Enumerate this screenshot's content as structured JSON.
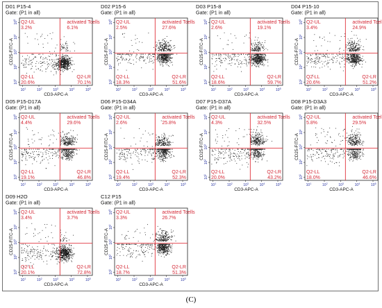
{
  "figure": {
    "caption": "(C)"
  },
  "colors": {
    "gate_line": "#e0303a",
    "quadrant_text": "#d42a37",
    "event_dot": "#1a1a1a",
    "axis": "#222222",
    "title_text": "#111111"
  },
  "chart_data": [
    {
      "type": "scatter",
      "title": "D01 P15-4",
      "subtitle": "Gate: (P1 in all)",
      "xlabel": "CD3-APC-A",
      "ylabel": "CD25-FITC-A",
      "x_ticks": [
        "10^1",
        "10^2",
        "10^3",
        "10^4",
        "10^5"
      ],
      "y_ticks": [
        "10^1",
        "10^2",
        "10^3",
        "10^4",
        "10^5"
      ],
      "quadrant_labels": {
        "ul": "Q2-UL",
        "ur": "activated Tcells",
        "ll": "Q2-LL",
        "lr": "Q2-LR"
      },
      "quadrant_percents": {
        "ul": "3.2%",
        "ur": "6.1%",
        "ll": "20.6%",
        "lr": "70.1%"
      },
      "clusters": [
        {
          "x": 3.55,
          "y": 2.3
        }
      ]
    },
    {
      "type": "scatter",
      "title": "D02 P15-6",
      "subtitle": "Gate: (P1 in all)",
      "xlabel": "CD3-APC-A",
      "ylabel": "CD25-FITC-A",
      "x_ticks": [
        "10^1",
        "10^2",
        "10^3",
        "10^4",
        "10^5"
      ],
      "y_ticks": [
        "10^1",
        "10^2",
        "10^3",
        "10^4",
        "10^5"
      ],
      "quadrant_labels": {
        "ul": "Q2-UL",
        "ur": "activated Tcells",
        "ll": "Q2-LL",
        "lr": "Q2-LR"
      },
      "quadrant_percents": {
        "ul": "2.5%",
        "ur": "27.6%",
        "ll": "18.3%",
        "lr": "51.6%"
      },
      "clusters": [
        {
          "x": 3.85,
          "y": 2.7
        }
      ]
    },
    {
      "type": "scatter",
      "title": "D03 P15-8",
      "subtitle": "Gate: (P1 in all)",
      "xlabel": "CD3-APC-A",
      "ylabel": "CD25-FITC-A",
      "x_ticks": [
        "10^1",
        "10^2",
        "10^3",
        "10^4",
        "10^5"
      ],
      "y_ticks": [
        "10^1",
        "10^2",
        "10^3",
        "10^4",
        "10^5"
      ],
      "quadrant_labels": {
        "ul": "Q2-UL",
        "ur": "activated Tcells",
        "ll": "Q2-LL",
        "lr": "Q2-LR"
      },
      "quadrant_percents": {
        "ul": "2.6%",
        "ur": "19.1%",
        "ll": "18.6%",
        "lr": "59.7%"
      },
      "clusters": [
        {
          "x": 3.75,
          "y": 2.6
        }
      ]
    },
    {
      "type": "scatter",
      "title": "D04 P15-10",
      "subtitle": "Gate: (P1 in all)",
      "xlabel": "CD3-APC-A",
      "ylabel": "CD25-FITC-A",
      "x_ticks": [
        "10^1",
        "10^2",
        "10^3",
        "10^4",
        "10^5"
      ],
      "y_ticks": [
        "10^1",
        "10^2",
        "10^3",
        "10^4",
        "10^5"
      ],
      "quadrant_labels": {
        "ul": "Q2-UL",
        "ur": "activated Tcells",
        "ll": "Q2-LL",
        "lr": "Q2-LR"
      },
      "quadrant_percents": {
        "ul": "3.4%",
        "ur": "24.9%",
        "ll": "20.6%",
        "lr": "51.2%"
      },
      "clusters": [
        {
          "x": 3.8,
          "y": 2.6
        }
      ]
    },
    {
      "type": "scatter",
      "title": "D05 P15-D17A",
      "subtitle": "Gate: (P1 in all)",
      "xlabel": "CD3-APC-A",
      "ylabel": "CD25-FITC-A",
      "x_ticks": [
        "10^1",
        "10^2",
        "10^3",
        "10^4",
        "10^5"
      ],
      "y_ticks": [
        "10^1",
        "10^2",
        "10^3",
        "10^4",
        "10^5"
      ],
      "quadrant_labels": {
        "ul": "Q2-UL",
        "ur": "activated Tcells",
        "ll": "Q2-LL",
        "lr": "Q2-LR"
      },
      "quadrant_percents": {
        "ul": "4.4%",
        "ur": "29.6%",
        "ll": "19.1%",
        "lr": "46.8%"
      },
      "clusters": [
        {
          "x": 3.75,
          "y": 2.6
        },
        {
          "x": 3.75,
          "y": 3.1
        }
      ]
    },
    {
      "type": "scatter",
      "title": "D06 P15-D34A",
      "subtitle": "Gate: (P1 in all)",
      "xlabel": "CD3-APC-A",
      "ylabel": "CD25-FITC-A",
      "x_ticks": [
        "10^1",
        "10^2",
        "10^3",
        "10^4",
        "10^5"
      ],
      "y_ticks": [
        "10^1",
        "10^2",
        "10^3",
        "10^4",
        "10^5"
      ],
      "quadrant_labels": {
        "ul": "Q2-UL",
        "ur": "activated Tcells",
        "ll": "Q2-LL",
        "lr": "Q2-LR"
      },
      "quadrant_percents": {
        "ul": "2.6%",
        "ur": "25.8%",
        "ll": "19.4%",
        "lr": "52.3%"
      },
      "clusters": [
        {
          "x": 3.8,
          "y": 2.6
        },
        {
          "x": 3.8,
          "y": 3.0
        }
      ]
    },
    {
      "type": "scatter",
      "title": "D07 P15-D37A",
      "subtitle": "Gate: (P1 in all)",
      "xlabel": "CD3-APC-A",
      "ylabel": "CD25-FITC-A",
      "x_ticks": [
        "10^1",
        "10^2",
        "10^3",
        "10^4",
        "10^5"
      ],
      "y_ticks": [
        "10^1",
        "10^2",
        "10^3",
        "10^4",
        "10^5"
      ],
      "quadrant_labels": {
        "ul": "Q2-UL",
        "ur": "activated Tcells",
        "ll": "Q2-LL",
        "lr": "Q2-LR"
      },
      "quadrant_percents": {
        "ul": "4.3%",
        "ur": "32.5%",
        "ll": "20.0%",
        "lr": "43.2%"
      },
      "clusters": [
        {
          "x": 3.7,
          "y": 2.6
        },
        {
          "x": 3.7,
          "y": 3.3
        }
      ]
    },
    {
      "type": "scatter",
      "title": "D08 P15-D3A3",
      "subtitle": "Gate: (P1 in all)",
      "xlabel": "CD3-APC-A",
      "ylabel": "CD25-FITC-A",
      "x_ticks": [
        "10^1",
        "10^2",
        "10^3",
        "10^4",
        "10^5"
      ],
      "y_ticks": [
        "10^1",
        "10^2",
        "10^3",
        "10^4",
        "10^5"
      ],
      "quadrant_labels": {
        "ul": "Q2-UL",
        "ur": "activated Tcells",
        "ll": "Q2-LL",
        "lr": "Q2-LR"
      },
      "quadrant_percents": {
        "ul": "5.8%",
        "ur": "29.5%",
        "ll": "18.0%",
        "lr": "46.6%"
      },
      "clusters": [
        {
          "x": 3.85,
          "y": 2.6
        },
        {
          "x": 3.85,
          "y": 3.2
        }
      ]
    },
    {
      "type": "scatter",
      "title": "D09 H2O",
      "subtitle": "Gate: (P1 in all)",
      "xlabel": "CD3-APC-A",
      "ylabel": "CD25-FITC-A",
      "x_ticks": [
        "10^1",
        "10^2",
        "10^3",
        "10^4",
        "10^5"
      ],
      "y_ticks": [
        "10^1",
        "10^2",
        "10^3",
        "10^4",
        "10^5"
      ],
      "quadrant_labels": {
        "ul": "Q2-UL",
        "ur": "activated Tcells",
        "ll": "Q2-LL",
        "lr": "Q2-LR"
      },
      "quadrant_percents": {
        "ul": "3.4%",
        "ur": "3.7%",
        "ll": "20.1%",
        "lr": "72.8%"
      },
      "clusters": [
        {
          "x": 3.55,
          "y": 2.3
        }
      ]
    },
    {
      "type": "scatter",
      "title": "C12 P15",
      "subtitle": "Gate: (P1 in all)",
      "xlabel": "CD3-APC-A",
      "ylabel": "CD25-FITC-A",
      "x_ticks": [
        "10^1",
        "10^2",
        "10^3",
        "10^4",
        "10^5"
      ],
      "y_ticks": [
        "10^1",
        "10^2",
        "10^3",
        "10^4",
        "10^5"
      ],
      "quadrant_labels": {
        "ul": "Q2-UL",
        "ur": "activated Tcells",
        "ll": "Q2-LL",
        "lr": "Q2-LR"
      },
      "quadrant_percents": {
        "ul": "3.3%",
        "ur": "26.7%",
        "ll": "18.7%",
        "lr": "51.3%"
      },
      "clusters": [
        {
          "x": 3.8,
          "y": 2.7
        }
      ]
    }
  ]
}
